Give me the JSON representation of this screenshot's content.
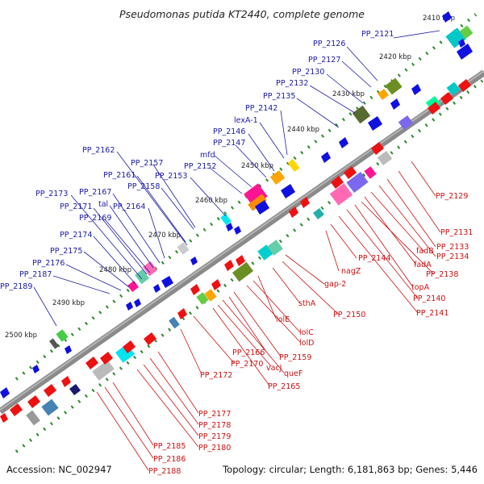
{
  "title": "Pseudomonas putida KT2440, complete genome",
  "footer": {
    "accession": "Accession: NC_002947",
    "summary": "Topology: circular; Length: 6,181,863 bp; Genes: 5,446"
  },
  "colors": {
    "backbone": "#8a8a8a",
    "forward_label": "#1a1aa6",
    "reverse_label": "#cc1111",
    "forward_arrow": "#1010e0",
    "reverse_arrow": "#ee1111",
    "tick": "#2a8a2a"
  },
  "scale_labels": [
    "2410 kbp",
    "2420 kbp",
    "2430 kbp",
    "2440 kbp",
    "2450 kbp",
    "2460 kbp",
    "2470 kbp",
    "2480 kbp",
    "2490 kbp",
    "2500 kbp"
  ],
  "forward_genes": [
    "PP_2121",
    "PP_2126",
    "PP_2127",
    "PP_2130",
    "PP_2132",
    "PP_2135",
    "PP_2142",
    "lexA-1",
    "PP_2146",
    "PP_2147",
    "mfd",
    "PP_2152",
    "PP_2153",
    "PP_2157",
    "PP_2161",
    "PP_2158",
    "PP_2162",
    "PP_2164",
    "PP_2167",
    "tal",
    "PP_2169",
    "PP_2171",
    "PP_2173",
    "PP_2174",
    "PP_2175",
    "PP_2176",
    "PP_2187",
    "PP_2189"
  ],
  "reverse_genes": [
    "PP_2129",
    "PP_2131",
    "PP_2133",
    "PP_2134",
    "fadB",
    "fadA",
    "PP_2138",
    "topA",
    "PP_2140",
    "PP_2141",
    "PP_2144",
    "nagZ",
    "gap-2",
    "PP_2150",
    "sthA",
    "lolE",
    "lolC",
    "lolD",
    "PP_2159",
    "PP_2166",
    "queF",
    "vacJ",
    "PP_2165",
    "PP_2170",
    "PP_2172",
    "PP_2177",
    "PP_2178",
    "PP_2179",
    "PP_2180",
    "PP_2185",
    "PP_2186",
    "PP_2188"
  ]
}
